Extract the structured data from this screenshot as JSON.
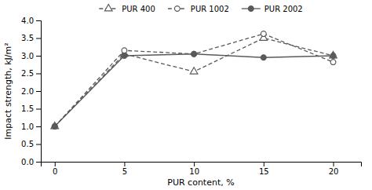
{
  "chart_data": {
    "type": "line",
    "xlabel": "PUR content, %",
    "ylabel": "Impact strength, kJ/m²",
    "x": [
      0,
      5,
      10,
      15,
      20
    ],
    "series": [
      {
        "name": "PUR 400",
        "color": "#5a5a5a",
        "values": [
          1.0,
          3.05,
          2.55,
          3.5,
          3.0
        ],
        "marker": "open-triangle",
        "line_style": "dashed"
      },
      {
        "name": "PUR 1002",
        "color": "#5a5a5a",
        "values": [
          1.0,
          3.15,
          3.05,
          3.62,
          2.82
        ],
        "marker": "open-circle",
        "line_style": "dashed"
      },
      {
        "name": "PUR 2002",
        "color": "#5a5a5a",
        "values": [
          1.0,
          3.0,
          3.05,
          2.95,
          3.0
        ],
        "marker": "circle",
        "line_style": "solid"
      }
    ],
    "xlim": [
      -1,
      22
    ],
    "ylim": [
      0.0,
      4.0
    ],
    "xticks": [
      0,
      5,
      10,
      15,
      20
    ],
    "yticks": [
      {
        "value": 0,
        "label": "0.0"
      },
      0.5,
      {
        "value": 1,
        "label": "1.0"
      },
      1.5,
      {
        "value": 2,
        "label": "2.0"
      },
      2.5,
      {
        "value": 3,
        "label": "3.0"
      },
      3.5,
      {
        "value": 4,
        "label": "4.0"
      }
    ],
    "legend": "top"
  }
}
